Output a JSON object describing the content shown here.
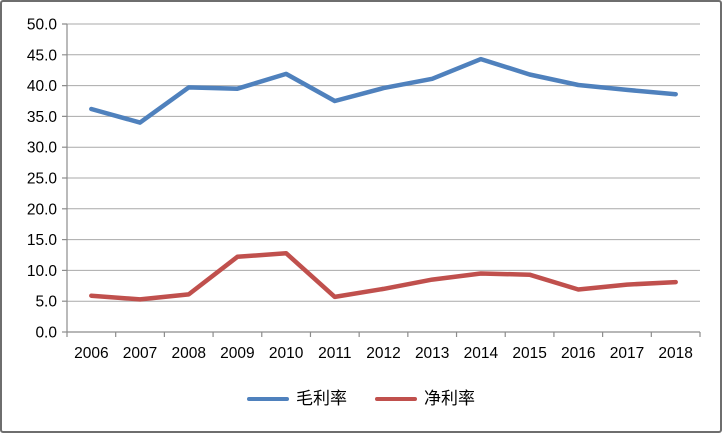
{
  "chart_data": {
    "type": "line",
    "categories": [
      "2006",
      "2007",
      "2008",
      "2009",
      "2010",
      "2011",
      "2012",
      "2013",
      "2014",
      "2015",
      "2016",
      "2017",
      "2018"
    ],
    "series": [
      {
        "name": "毛利率",
        "slug": "gross-margin",
        "color": "#4F81BD",
        "values": [
          36.2,
          34.0,
          39.7,
          39.5,
          41.9,
          37.5,
          39.6,
          41.1,
          44.3,
          41.8,
          40.1,
          39.3,
          38.6
        ]
      },
      {
        "name": "净利率",
        "slug": "net-margin",
        "color": "#C0504D",
        "values": [
          5.9,
          5.3,
          6.1,
          12.2,
          12.8,
          5.7,
          7.0,
          8.5,
          9.5,
          9.3,
          6.9,
          7.7,
          8.1
        ]
      }
    ],
    "title": "",
    "xlabel": "",
    "ylabel": "",
    "ylim": [
      0,
      50
    ],
    "y_tick_step": 5,
    "y_tick_labels": [
      "0.0",
      "5.0",
      "10.0",
      "15.0",
      "20.0",
      "25.0",
      "30.0",
      "35.0",
      "40.0",
      "45.0",
      "50.0"
    ],
    "grid": true,
    "legend_position": "bottom",
    "colors": {
      "gridline": "#A9A9A9",
      "axis": "#8C8C8C",
      "tick": "#8C8C8C",
      "text": "#000000",
      "background": "#FFFFFF"
    }
  }
}
